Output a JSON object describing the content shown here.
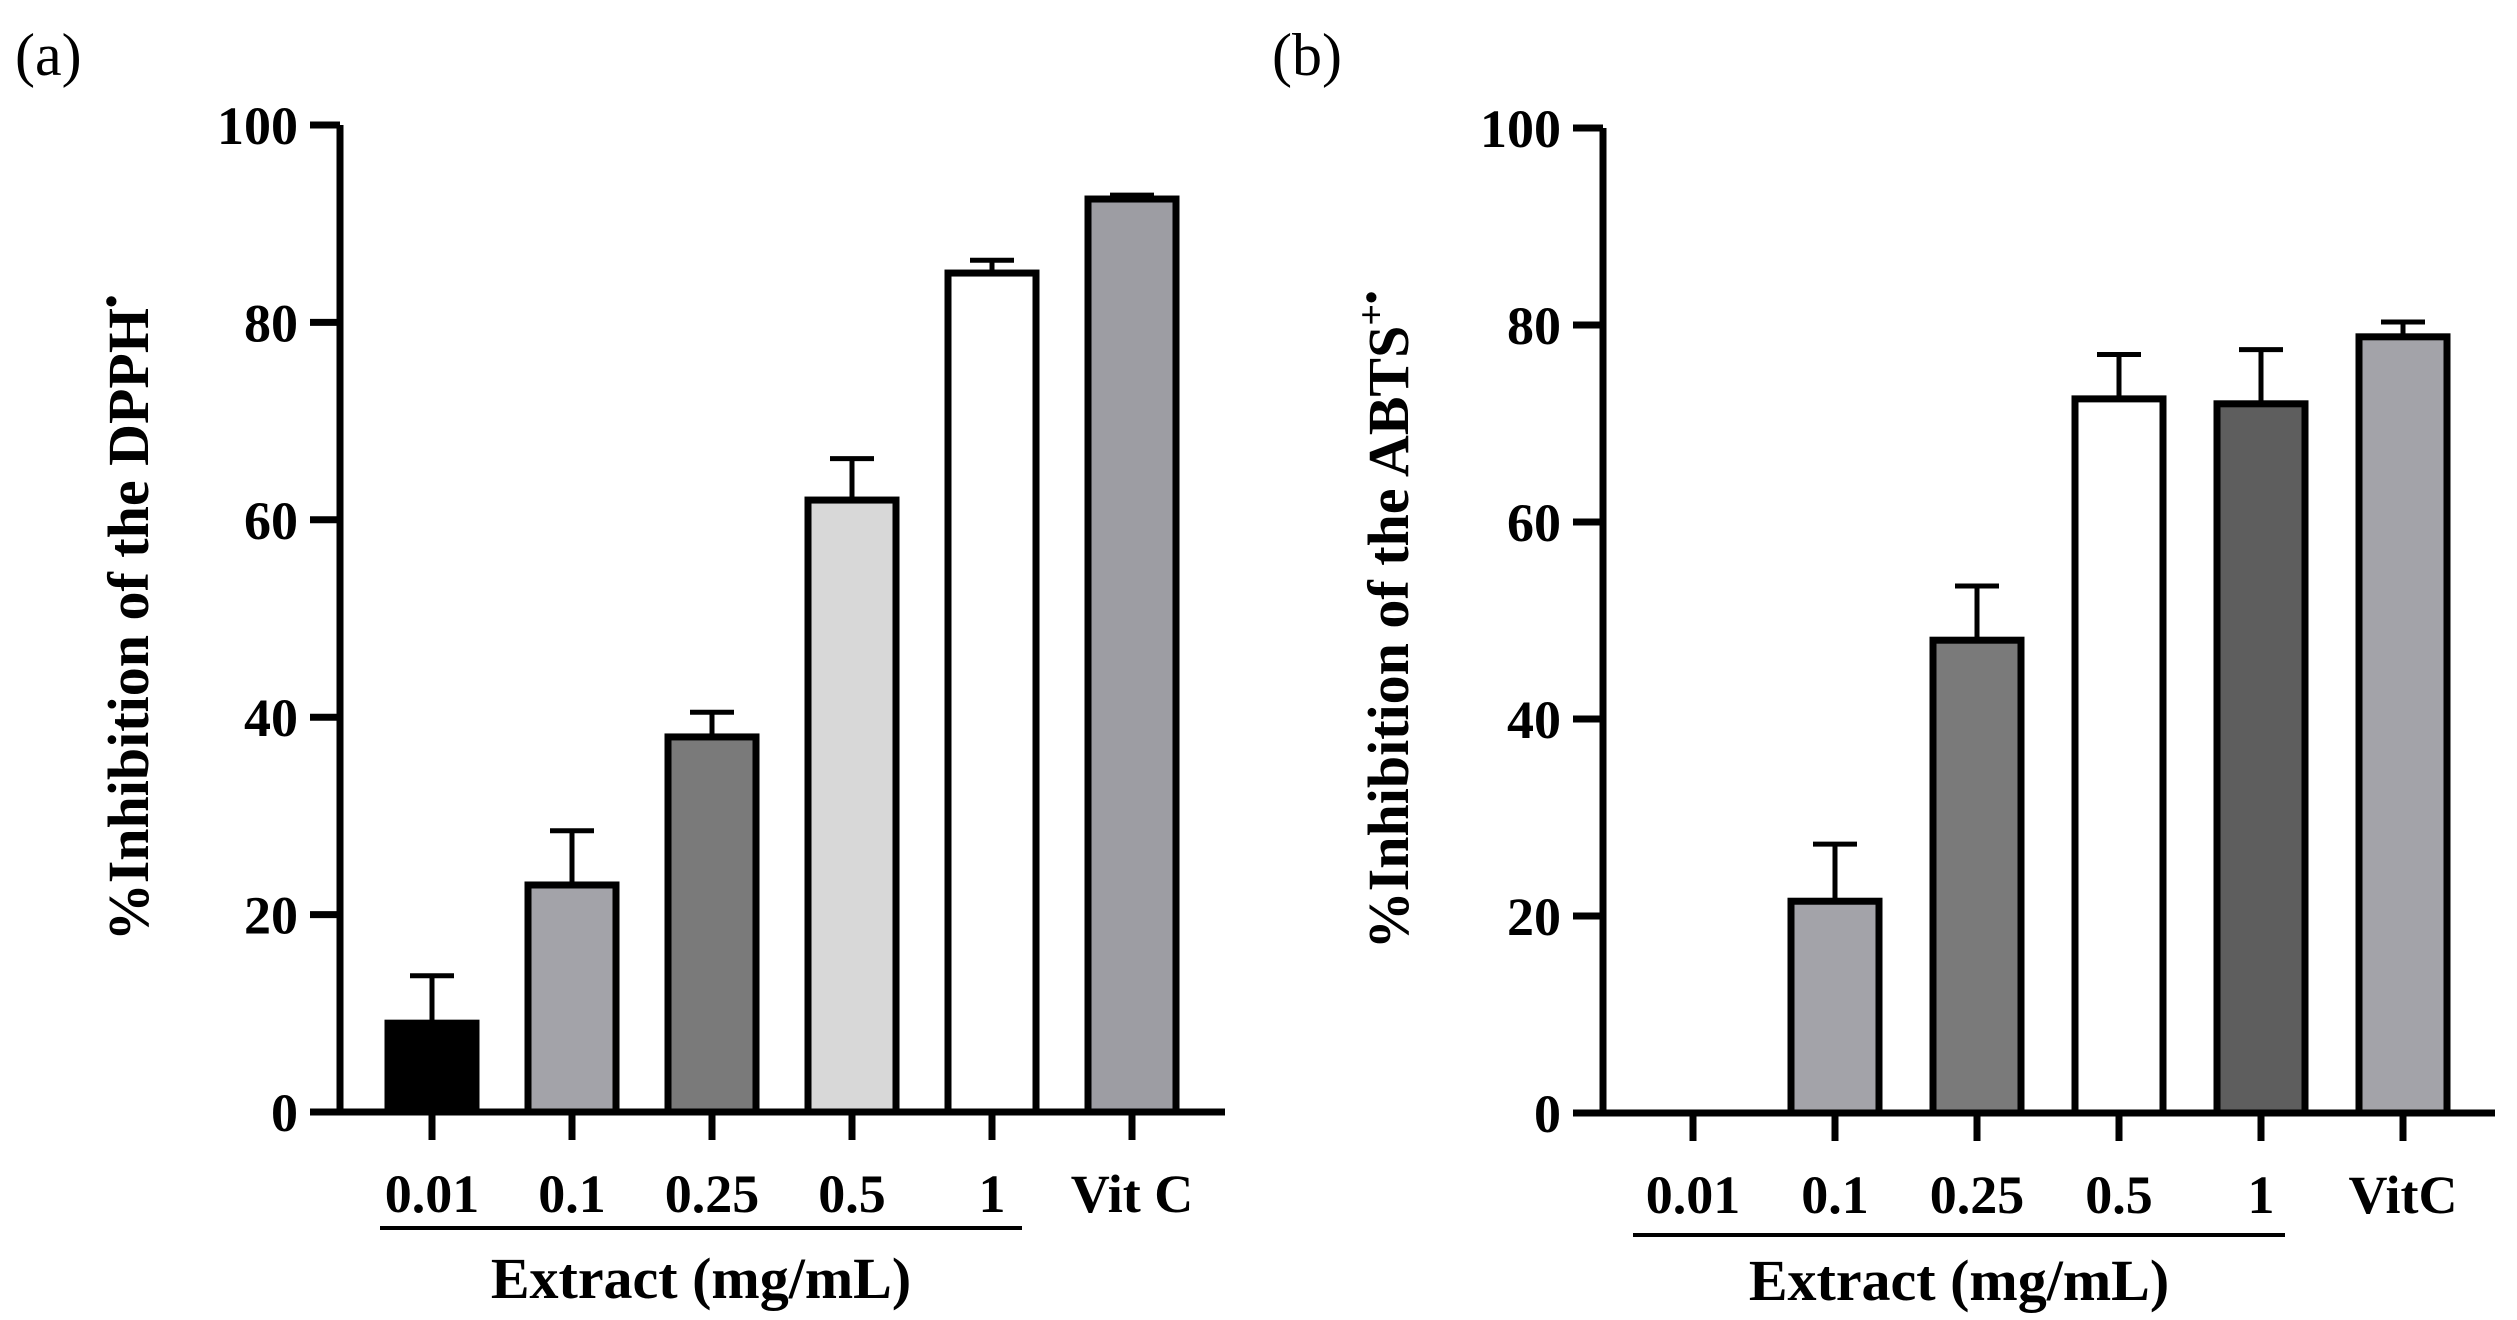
{
  "chart_data": [
    {
      "type": "bar",
      "panel_label": "(a)",
      "categories": [
        "0.01",
        "0.1",
        "0.25",
        "0.5",
        "1",
        "Vit C"
      ],
      "values": [
        9,
        23,
        38,
        62,
        85,
        92.5
      ],
      "errors": [
        4.8,
        5.5,
        2.5,
        4.2,
        1.3,
        0.4
      ],
      "colors": [
        "#000000",
        "#a3a3a9",
        "#7a7a7a",
        "#d8d8d8",
        "#ffffff",
        "#9d9da3"
      ],
      "ylabel_main": "%Inhibition of the DPPH",
      "ylabel_sup": "•",
      "xlabel": "Extract (mg/mL)",
      "extract_group_count": 5,
      "ylim": [
        0,
        100
      ],
      "yticks": [
        "0",
        "20",
        "40",
        "60",
        "80",
        "100"
      ]
    },
    {
      "type": "bar",
      "panel_label": "(b)",
      "categories": [
        "0.01",
        "0.1",
        "0.25",
        "0.5",
        "1",
        "VitC"
      ],
      "values": [
        0,
        21.5,
        48,
        72.5,
        72,
        78.8
      ],
      "errors": [
        0,
        5.8,
        5.5,
        4.5,
        5.5,
        1.5
      ],
      "colors": [
        "#000000",
        "#a3a3a9",
        "#7a7a7a",
        "#ffffff",
        "#5e5e5e",
        "#a3a3a9"
      ],
      "ylabel_main": "%Inhibition of the ABTS",
      "ylabel_sup": "+•",
      "xlabel": "Extract (mg/mL)",
      "extract_group_count": 5,
      "ylim": [
        0,
        100
      ],
      "yticks": [
        "0",
        "20",
        "40",
        "60",
        "80",
        "100"
      ]
    }
  ]
}
